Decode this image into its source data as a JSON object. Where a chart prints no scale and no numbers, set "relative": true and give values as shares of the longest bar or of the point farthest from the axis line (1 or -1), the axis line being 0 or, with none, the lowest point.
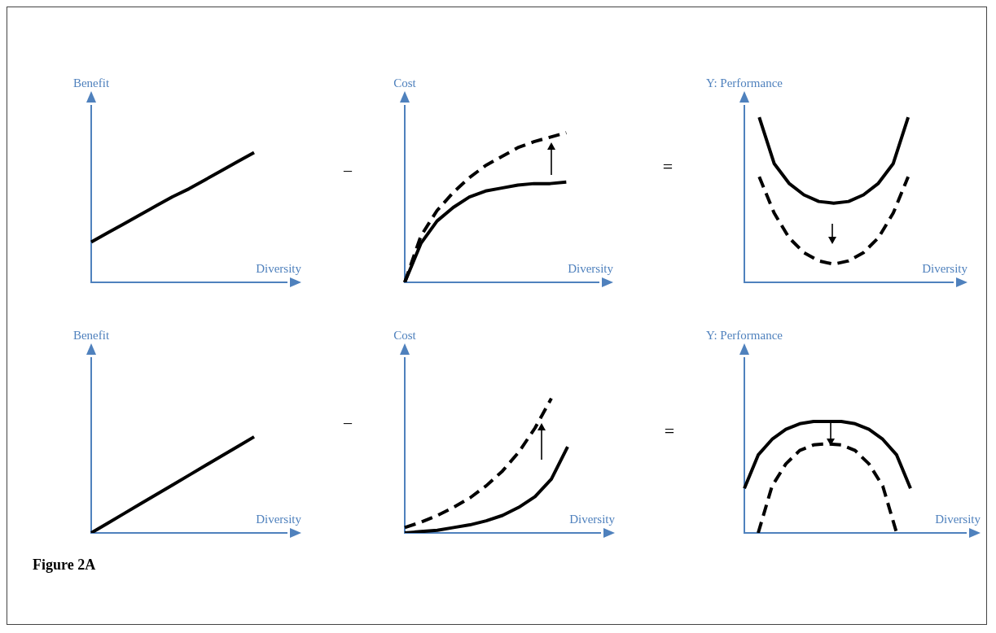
{
  "chart_data": [
    {
      "type": "line",
      "relative": true,
      "ylabel": "Benefit",
      "xlabel": "Diversity",
      "grid": false,
      "legend": false,
      "marker": "none",
      "annotations": [
        "–"
      ],
      "categories": [
        null,
        null,
        null,
        null,
        null,
        null,
        null,
        null,
        null,
        null,
        null,
        null,
        null
      ],
      "series": [
        {
          "color": "#000000",
          "line_style": "solid",
          "values": [
            0.31,
            0.38,
            0.45,
            0.52,
            0.59,
            0.66,
            0.72,
            0.79,
            0.86,
            0.93,
            1,
            null,
            null
          ]
        }
      ]
    },
    {
      "type": "line",
      "relative": true,
      "ylabel": "Cost",
      "xlabel": "Diversity",
      "grid": false,
      "legend": false,
      "marker": "none",
      "annotations": [
        "="
      ],
      "categories": [
        null,
        null,
        null,
        null,
        null,
        null,
        null,
        null,
        null,
        null,
        null,
        null,
        null
      ],
      "series": [
        {
          "color": "#000000",
          "line_style": "dashed",
          "values": [
            0,
            0.31,
            0.48,
            0.6,
            0.7,
            0.78,
            0.84,
            0.9,
            0.94,
            0.97,
            1,
            null,
            null
          ]
        },
        {
          "color": "#000000",
          "line_style": "solid",
          "values": [
            0,
            0.26,
            0.41,
            0.5,
            0.57,
            0.61,
            0.63,
            0.65,
            0.66,
            0.66,
            0.67,
            null,
            null
          ]
        }
      ]
    },
    {
      "type": "line",
      "relative": true,
      "ylabel": "Y: Performance",
      "xlabel": "Diversity",
      "grid": false,
      "legend": false,
      "marker": "none",
      "categories": [
        null,
        null,
        null,
        null,
        null,
        null,
        null,
        null,
        null,
        null,
        null,
        null,
        null,
        null,
        null
      ],
      "series": [
        {
          "color": "#000000",
          "line_style": "solid",
          "values": [
            null,
            1,
            0.72,
            0.6,
            0.53,
            0.49,
            0.48,
            0.49,
            0.53,
            0.6,
            0.72,
            1,
            null,
            null,
            null
          ]
        },
        {
          "color": "#000000",
          "line_style": "dashed",
          "values": [
            null,
            0.64,
            0.42,
            0.27,
            0.18,
            0.13,
            0.11,
            0.13,
            0.18,
            0.27,
            0.42,
            0.64,
            null,
            null,
            null
          ]
        }
      ]
    },
    {
      "type": "line",
      "relative": true,
      "ylabel": "Benefit",
      "xlabel": "Diversity",
      "grid": false,
      "legend": false,
      "marker": "none",
      "annotations": [
        "–",
        "Figure 2A"
      ],
      "categories": [
        null,
        null,
        null,
        null,
        null,
        null,
        null,
        null,
        null,
        null,
        null,
        null,
        null
      ],
      "series": [
        {
          "color": "#000000",
          "line_style": "solid",
          "values": [
            0,
            0.1,
            0.2,
            0.3,
            0.4,
            0.5,
            0.6,
            0.7,
            0.8,
            0.9,
            1,
            null,
            null
          ]
        }
      ]
    },
    {
      "type": "line",
      "relative": true,
      "ylabel": "Cost",
      "xlabel": "Diversity",
      "grid": false,
      "legend": false,
      "marker": "none",
      "annotations": [
        "="
      ],
      "categories": [
        null,
        null,
        null,
        null,
        null,
        null,
        null,
        null,
        null,
        null,
        null,
        null,
        null
      ],
      "series": [
        {
          "color": "#000000",
          "line_style": "dashed",
          "values": [
            0.04,
            0.08,
            0.13,
            0.19,
            0.26,
            0.35,
            0.46,
            0.6,
            0.78,
            1,
            null,
            null,
            null
          ]
        },
        {
          "color": "#000000",
          "line_style": "solid",
          "values": [
            0,
            0.01,
            0.02,
            0.04,
            0.06,
            0.09,
            0.13,
            0.19,
            0.27,
            0.4,
            0.64,
            null,
            null
          ]
        }
      ]
    },
    {
      "type": "line",
      "relative": true,
      "ylabel": "Y: Performance",
      "xlabel": "Diversity",
      "grid": false,
      "legend": false,
      "marker": "none",
      "categories": [
        null,
        null,
        null,
        null,
        null,
        null,
        null,
        null,
        null,
        null,
        null,
        null,
        null,
        null,
        null,
        null,
        null
      ],
      "series": [
        {
          "color": "#000000",
          "line_style": "solid",
          "values": [
            0.4,
            0.7,
            0.84,
            0.93,
            0.98,
            1,
            1,
            1,
            0.98,
            0.93,
            0.84,
            0.7,
            0.4,
            null,
            null,
            null,
            null
          ]
        },
        {
          "color": "#000000",
          "line_style": "dashed",
          "values": [
            null,
            0,
            0.42,
            0.62,
            0.74,
            0.79,
            0.8,
            0.79,
            0.74,
            0.62,
            0.42,
            0,
            null,
            null,
            null,
            null,
            null
          ]
        }
      ]
    }
  ]
}
